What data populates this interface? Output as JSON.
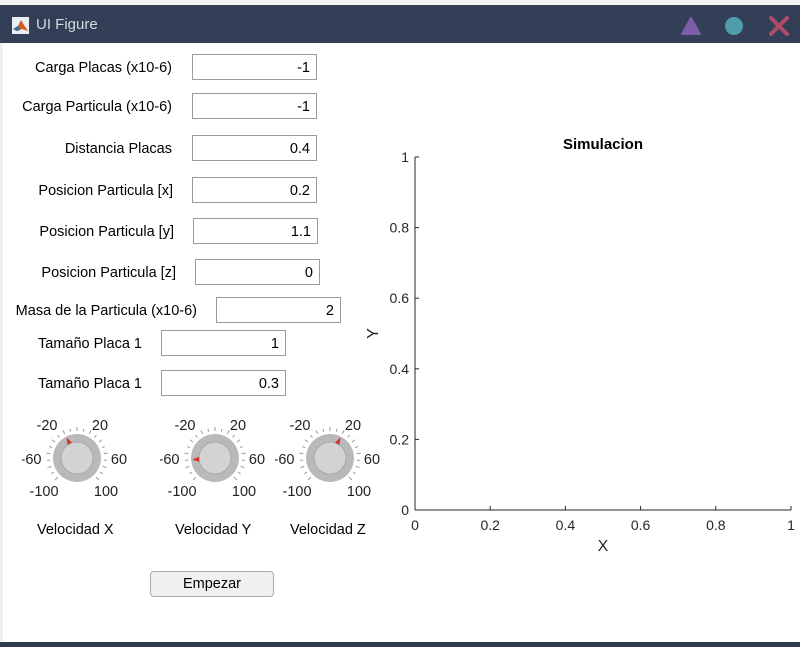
{
  "window": {
    "title": "UI Figure",
    "controls": [
      "triangle-icon",
      "circle-icon",
      "close-icon"
    ],
    "colors": {
      "titlebar": "#333f56",
      "triangle": "#7b5ea7",
      "circle": "#4f9cad",
      "close": "#b24a6a"
    }
  },
  "fields": {
    "carga_placas": {
      "label": "Carga Placas (x10-6)",
      "value": "-1"
    },
    "carga_particula": {
      "label": "Carga Particula (x10-6)",
      "value": "-1"
    },
    "distancia_placas": {
      "label": "Distancia Placas",
      "value": "0.4"
    },
    "pos_x": {
      "label": "Posicion Particula [x]",
      "value": "0.2"
    },
    "pos_y": {
      "label": "Posicion Particula [y]",
      "value": "1.1"
    },
    "pos_z": {
      "label": "Posicion Particula [z]",
      "value": "0"
    },
    "masa": {
      "label": "Masa de la Particula (x10-6)",
      "value": "2"
    },
    "tam_placa1a": {
      "label": "Tamaño Placa 1",
      "value": "1"
    },
    "tam_placa1b": {
      "label": "Tamaño Placa 1",
      "value": "0.3"
    }
  },
  "knobs": {
    "tick_labels": {
      "neg20": "-20",
      "pos20": "20",
      "neg60": "-60",
      "pos60": "60",
      "neg100": "-100",
      "pos100": "100"
    },
    "vel_x": {
      "label": "Velocidad X",
      "value": -20
    },
    "vel_y": {
      "label": "Velocidad Y",
      "value": -70
    },
    "vel_z": {
      "label": "Velocidad Z",
      "value": 20
    }
  },
  "button": {
    "label": "Empezar"
  },
  "chart_data": {
    "type": "line",
    "title": "Simulacion",
    "xlabel": "X",
    "ylabel": "Y",
    "xlim": [
      0,
      1
    ],
    "ylim": [
      0,
      1
    ],
    "xticks": [
      "0",
      "0.2",
      "0.4",
      "0.6",
      "0.8",
      "1"
    ],
    "yticks": [
      "0",
      "0.2",
      "0.4",
      "0.6",
      "0.8",
      "1"
    ],
    "grid": false,
    "series": []
  }
}
